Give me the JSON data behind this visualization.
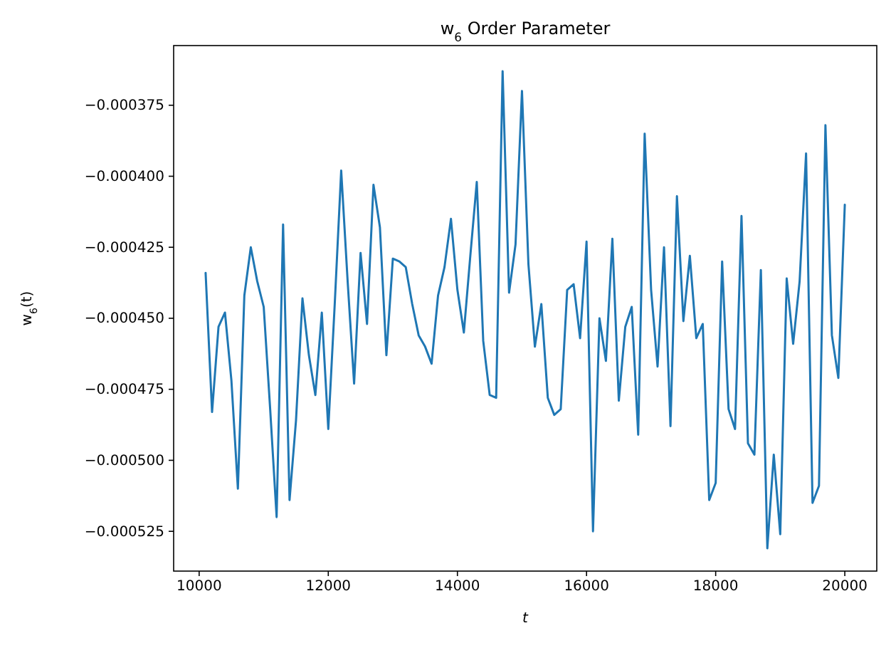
{
  "chart_data": {
    "type": "line",
    "title": "w$_{6}$ Order Parameter",
    "xlabel": "t",
    "ylabel": "w$_{6}$(t)",
    "x": [
      10100,
      10200,
      10300,
      10400,
      10500,
      10600,
      10700,
      10800,
      10900,
      11000,
      11100,
      11200,
      11300,
      11400,
      11500,
      11600,
      11700,
      11800,
      11900,
      12000,
      12100,
      12200,
      12300,
      12400,
      12500,
      12600,
      12700,
      12800,
      12900,
      13000,
      13100,
      13200,
      13300,
      13400,
      13500,
      13600,
      13700,
      13800,
      13900,
      14000,
      14100,
      14200,
      14300,
      14400,
      14500,
      14600,
      14700,
      14800,
      14900,
      15000,
      15100,
      15200,
      15300,
      15400,
      15500,
      15600,
      15700,
      15800,
      15900,
      16000,
      16100,
      16200,
      16300,
      16400,
      16500,
      16600,
      16700,
      16800,
      16900,
      17000,
      17100,
      17200,
      17300,
      17400,
      17500,
      17600,
      17700,
      17800,
      17900,
      18000,
      18100,
      18200,
      18300,
      18400,
      18500,
      18600,
      18700,
      18800,
      18900,
      19000,
      19100,
      19200,
      19300,
      19400,
      19500,
      19600,
      19700,
      19800,
      19900,
      20000
    ],
    "series": [
      {
        "color": "#1f77b4",
        "values": [
          -0.000434,
          -0.000483,
          -0.000453,
          -0.000448,
          -0.000472,
          -0.00051,
          -0.000442,
          -0.000425,
          -0.000437,
          -0.000446,
          -0.000482,
          -0.00052,
          -0.000417,
          -0.000514,
          -0.000486,
          -0.000443,
          -0.000463,
          -0.000477,
          -0.000448,
          -0.000489,
          -0.000445,
          -0.000398,
          -0.000437,
          -0.000473,
          -0.000427,
          -0.000452,
          -0.000403,
          -0.000418,
          -0.000463,
          -0.000429,
          -0.00043,
          -0.000432,
          -0.000445,
          -0.000456,
          -0.00046,
          -0.000466,
          -0.000442,
          -0.000432,
          -0.000415,
          -0.00044,
          -0.000455,
          -0.000428,
          -0.000402,
          -0.000458,
          -0.000477,
          -0.000478,
          -0.000363,
          -0.000441,
          -0.000424,
          -0.00037,
          -0.000431,
          -0.00046,
          -0.000445,
          -0.000478,
          -0.000484,
          -0.000482,
          -0.00044,
          -0.000438,
          -0.000457,
          -0.000423,
          -0.000525,
          -0.00045,
          -0.000465,
          -0.000422,
          -0.000479,
          -0.000453,
          -0.000446,
          -0.000491,
          -0.000385,
          -0.00044,
          -0.000467,
          -0.000425,
          -0.000488,
          -0.000407,
          -0.000451,
          -0.000428,
          -0.000457,
          -0.000452,
          -0.000514,
          -0.000508,
          -0.00043,
          -0.000482,
          -0.000489,
          -0.000414,
          -0.000494,
          -0.000498,
          -0.000433,
          -0.000531,
          -0.000498,
          -0.000526,
          -0.000436,
          -0.000459,
          -0.000437,
          -0.000392,
          -0.000515,
          -0.000509,
          -0.000382,
          -0.000456,
          -0.000471,
          -0.00041
        ]
      }
    ],
    "xlim": [
      9605,
      20495
    ],
    "xticks": [
      10000,
      12000,
      14000,
      16000,
      18000,
      20000
    ],
    "ylim": [
      -0.000539,
      -0.000354
    ],
    "yticks": [
      {
        "value": -0.000525,
        "label": "−0.000525"
      },
      {
        "value": -0.0005,
        "label": "−0.000500"
      },
      {
        "value": -0.000475,
        "label": "−0.000475"
      },
      {
        "value": -0.00045,
        "label": "−0.000450"
      },
      {
        "value": -0.000425,
        "label": "−0.000425"
      },
      {
        "value": -0.0004,
        "label": "−0.000400"
      },
      {
        "value": -0.000375,
        "label": "−0.000375"
      }
    ],
    "marker": "none",
    "line_style": "solid"
  }
}
